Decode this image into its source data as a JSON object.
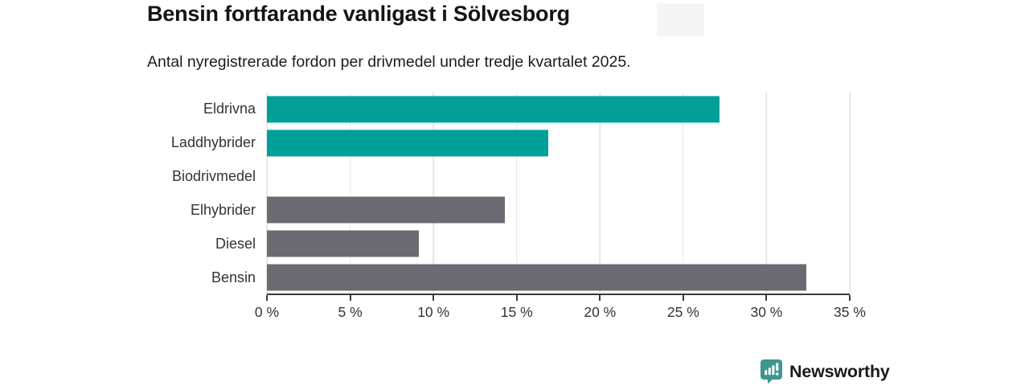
{
  "header": {
    "title": "Bensin fortfarande vanligast i Sölvesborg",
    "subtitle": "Antal nyregistrerade fordon per drivmedel under tredje kvartalet 2025."
  },
  "chart_data": {
    "type": "bar",
    "orientation": "horizontal",
    "title": "Bensin fortfarande vanligast i Sölvesborg",
    "subtitle": "Antal nyregistrerade fordon per drivmedel under tredje kvartalet 2025.",
    "categories": [
      "Eldrivna",
      "Laddhybrider",
      "Biodrivmedel",
      "Elhybrider",
      "Diesel",
      "Bensin"
    ],
    "values": [
      27.2,
      16.9,
      0,
      14.3,
      9.1,
      32.4
    ],
    "bar_colors": [
      "#00a099",
      "#00a099",
      "#6c6b72",
      "#6c6b72",
      "#6c6b72",
      "#6c6b72"
    ],
    "unit": "%",
    "xlabel": "",
    "ylabel": "",
    "xlim": [
      0,
      35
    ],
    "x_ticks": [
      0,
      5,
      10,
      15,
      20,
      25,
      30,
      35
    ],
    "x_tick_labels": [
      "0 %",
      "5 %",
      "10 %",
      "15 %",
      "20 %",
      "25 %",
      "30 %",
      "35 %"
    ],
    "grid": "vertical-gridlines-on",
    "legend": "none"
  },
  "branding": {
    "logo_text": "Newsworthy",
    "logo_text_color": "#2a827c",
    "logo_icon_color": "#3e968f",
    "logo_icon": "newsworthy-bar-chart-bubble-icon"
  },
  "colors": {
    "accent_teal": "#00a099",
    "neutral_gray": "#6c6b72",
    "gridline": "#e8e6e6",
    "axis": "#3a3a3a",
    "title_text": "#141414",
    "label_text": "#333333",
    "background": "#ffffff"
  }
}
